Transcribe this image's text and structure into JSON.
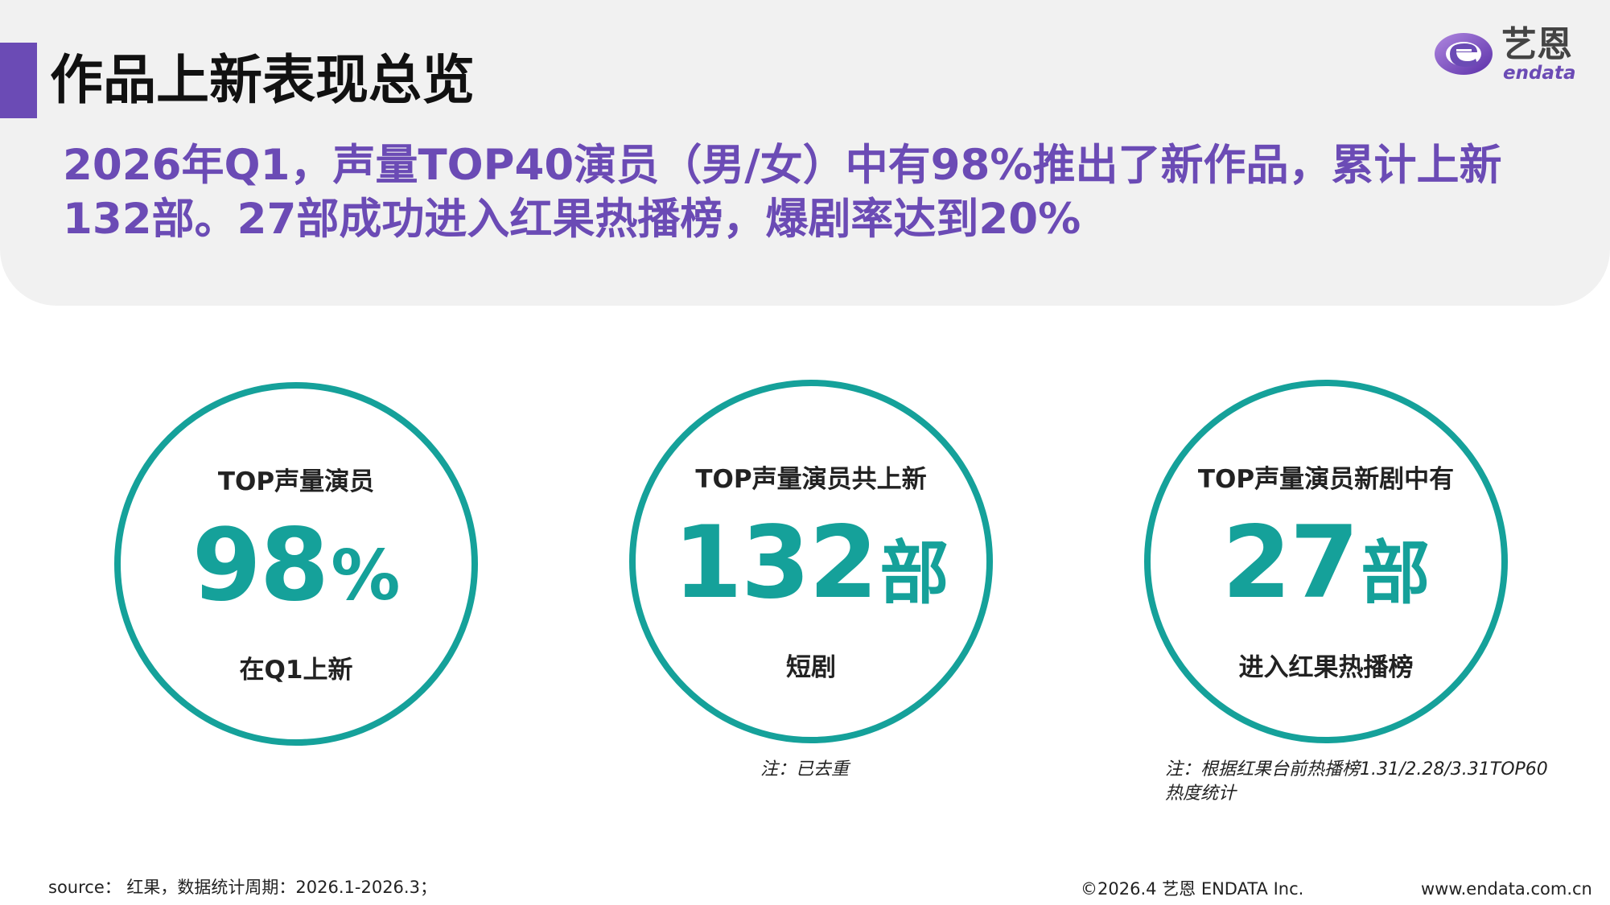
{
  "header": {
    "title": "作品上新表现总览",
    "summary": "2026年Q1，声量TOP40演员（男/女）中有98%推出了新作品，累计上新132部。27部成功进入红果热播榜，爆剧率达到20%"
  },
  "logo": {
    "icon": "endata-logo-icon",
    "cn": "艺恩",
    "en": "endata",
    "brand_color": "#6b4bb5"
  },
  "stats": [
    {
      "label": "TOP声量演员",
      "value": "98",
      "unit": "%",
      "caption": "在Q1上新"
    },
    {
      "label": "TOP声量演员共上新",
      "value": "132",
      "unit": "部",
      "caption": "短剧"
    },
    {
      "label": "TOP声量演员新剧中有",
      "value": "27",
      "unit": "部",
      "caption": "进入红果热播榜"
    }
  ],
  "notes": {
    "dedup": "注：已去重",
    "ranking": "注：根据红果台前热播榜1.31/2.28/3.31TOP60热度统计"
  },
  "footer": {
    "source": "source： 红果，数据统计周期：2026.1-2026.3；",
    "copyright": "©2026.4  艺恩 ENDATA Inc.",
    "url": "www.endata.com.cn"
  },
  "colors": {
    "accent": "#6b4bb5",
    "teal": "#15a19a",
    "panel": "#f1f1f1"
  }
}
